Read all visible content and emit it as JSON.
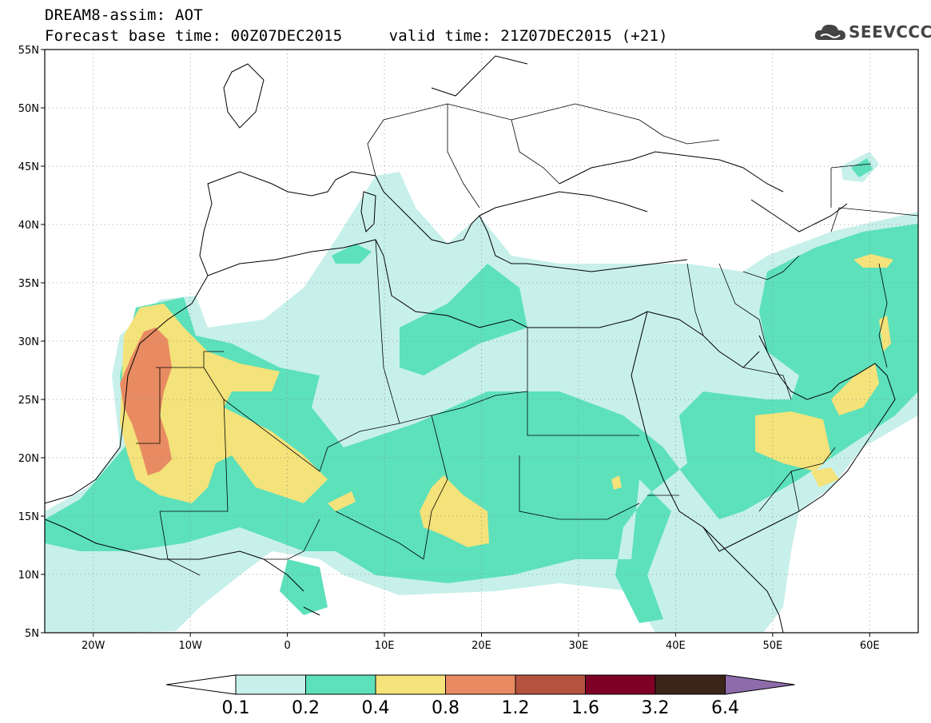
{
  "header": {
    "title_line1": "DREAM8-assim: AOT",
    "title_line2": "Forecast base time: 00Z07DEC2015     valid time: 21Z07DEC2015 (+21)",
    "logo_text": "SEEVCCC",
    "logo_icon": "cloud-icon"
  },
  "map": {
    "lon_range": [
      -25,
      65
    ],
    "lat_range": [
      5,
      55
    ],
    "lat_ticks": [
      {
        "value": 55,
        "label": "55N"
      },
      {
        "value": 50,
        "label": "50N"
      },
      {
        "value": 45,
        "label": "45N"
      },
      {
        "value": 40,
        "label": "40N"
      },
      {
        "value": 35,
        "label": "35N"
      },
      {
        "value": 30,
        "label": "30N"
      },
      {
        "value": 25,
        "label": "25N"
      },
      {
        "value": 20,
        "label": "20N"
      },
      {
        "value": 15,
        "label": "15N"
      },
      {
        "value": 10,
        "label": "10N"
      },
      {
        "value": 5,
        "label": "5N"
      }
    ],
    "lon_ticks": [
      {
        "value": -20,
        "label": "20W"
      },
      {
        "value": -10,
        "label": "10W"
      },
      {
        "value": 0,
        "label": "0"
      },
      {
        "value": 10,
        "label": "10E"
      },
      {
        "value": 20,
        "label": "20E"
      },
      {
        "value": 30,
        "label": "30E"
      },
      {
        "value": 40,
        "label": "40E"
      },
      {
        "value": 50,
        "label": "50E"
      },
      {
        "value": 60,
        "label": "60E"
      }
    ],
    "grid": "dotted"
  },
  "colorbar": {
    "levels": [
      "0.1",
      "0.2",
      "0.4",
      "0.8",
      "1.2",
      "1.6",
      "3.2",
      "6.4"
    ],
    "colors": [
      "#c7f0ea",
      "#5ce1bb",
      "#f4e27a",
      "#e88b62",
      "#b5533f",
      "#7e0025",
      "#3b2418",
      "#8e6cab"
    ],
    "under_color": "#ffffff"
  }
}
